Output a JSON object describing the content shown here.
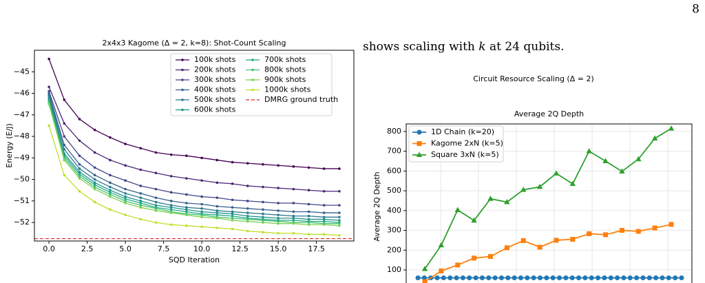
{
  "page_number": "8",
  "text": [
    "shows scaling with ",
    "k",
    " at 24 qubits."
  ],
  "chart_data": [
    {
      "type": "line",
      "title": "2x4x3 Kagome (Δ = 2, k=8): Shot-Count Scaling",
      "xlabel": "SQD Iteration",
      "ylabel": "Energy (E/J)",
      "x": [
        0,
        1,
        2,
        3,
        4,
        5,
        6,
        7,
        8,
        9,
        10,
        11,
        12,
        13,
        14,
        15,
        16,
        17,
        18,
        19
      ],
      "xlim": [
        -0.95,
        19.95
      ],
      "xticks": [
        {
          "value": 0,
          "label": "0.0"
        },
        2.5,
        {
          "value": 5,
          "label": "5.0"
        },
        7.5,
        {
          "value": 10,
          "label": "10.0"
        },
        12.5,
        {
          "value": 15,
          "label": "15.0"
        },
        17.5
      ],
      "ylim": [
        -52.86,
        -44.0
      ],
      "yticks": [
        {
          "value": -52,
          "label": "−52"
        },
        {
          "value": -51,
          "label": "−51"
        },
        {
          "value": -50,
          "label": "−50"
        },
        {
          "value": -49,
          "label": "−49"
        },
        {
          "value": -48,
          "label": "−48"
        },
        {
          "value": -47,
          "label": "−47"
        },
        {
          "value": -46,
          "label": "−46"
        },
        {
          "value": -45,
          "label": "−45"
        }
      ],
      "series": [
        {
          "name": "100k shots",
          "color": "#440154",
          "values": [
            -44.4,
            -46.3,
            -47.2,
            -47.7,
            -48.05,
            -48.35,
            -48.55,
            -48.75,
            -48.85,
            -48.9,
            -49.0,
            -49.1,
            -49.2,
            -49.25,
            -49.3,
            -49.35,
            -49.4,
            -49.45,
            -49.5,
            -49.5
          ]
        },
        {
          "name": "200k shots",
          "color": "#482475",
          "values": [
            -45.7,
            -47.4,
            -48.2,
            -48.75,
            -49.1,
            -49.35,
            -49.55,
            -49.7,
            -49.85,
            -49.95,
            -50.05,
            -50.15,
            -50.2,
            -50.3,
            -50.35,
            -50.4,
            -50.45,
            -50.5,
            -50.55,
            -50.55
          ]
        },
        {
          "name": "300k shots",
          "color": "#414487",
          "values": [
            -45.9,
            -48.0,
            -48.9,
            -49.45,
            -49.8,
            -50.05,
            -50.3,
            -50.45,
            -50.6,
            -50.7,
            -50.8,
            -50.85,
            -50.95,
            -51.0,
            -51.05,
            -51.1,
            -51.1,
            -51.15,
            -51.2,
            -51.2
          ]
        },
        {
          "name": "400k shots",
          "color": "#355f8d",
          "values": [
            -46.0,
            -48.4,
            -49.3,
            -49.8,
            -50.15,
            -50.45,
            -50.65,
            -50.85,
            -51.0,
            -51.1,
            -51.15,
            -51.25,
            -51.3,
            -51.35,
            -51.4,
            -51.45,
            -51.5,
            -51.5,
            -51.55,
            -51.55
          ]
        },
        {
          "name": "500k shots",
          "color": "#2a788e",
          "values": [
            -46.1,
            -48.6,
            -49.5,
            -50.0,
            -50.35,
            -50.65,
            -50.85,
            -51.05,
            -51.2,
            -51.3,
            -51.35,
            -51.45,
            -51.5,
            -51.55,
            -51.6,
            -51.65,
            -51.7,
            -51.7,
            -51.75,
            -51.75
          ]
        },
        {
          "name": "600k shots",
          "color": "#21918c",
          "values": [
            -46.2,
            -48.8,
            -49.65,
            -50.15,
            -50.5,
            -50.8,
            -51.0,
            -51.2,
            -51.3,
            -51.4,
            -51.5,
            -51.55,
            -51.6,
            -51.7,
            -51.75,
            -51.8,
            -51.8,
            -51.85,
            -51.85,
            -51.9
          ]
        },
        {
          "name": "700k shots",
          "color": "#22a884",
          "values": [
            -46.3,
            -48.9,
            -49.75,
            -50.25,
            -50.6,
            -50.9,
            -51.1,
            -51.3,
            -51.4,
            -51.5,
            -51.6,
            -51.65,
            -51.7,
            -51.8,
            -51.85,
            -51.9,
            -51.9,
            -51.95,
            -51.95,
            -52.0
          ]
        },
        {
          "name": "800k shots",
          "color": "#44bf70",
          "values": [
            -46.4,
            -49.0,
            -49.85,
            -50.35,
            -50.7,
            -51.0,
            -51.2,
            -51.35,
            -51.5,
            -51.6,
            -51.65,
            -51.75,
            -51.8,
            -51.85,
            -51.9,
            -51.95,
            -52.0,
            -52.0,
            -52.05,
            -52.05
          ]
        },
        {
          "name": "900k shots",
          "color": "#7ad151",
          "values": [
            -46.5,
            -49.1,
            -49.95,
            -50.45,
            -50.8,
            -51.1,
            -51.3,
            -51.45,
            -51.55,
            -51.65,
            -51.75,
            -51.8,
            -51.9,
            -51.95,
            -52.0,
            -52.05,
            -52.05,
            -52.1,
            -52.1,
            -52.15
          ]
        },
        {
          "name": "1000k shots",
          "color": "#bddf26",
          "values": [
            -47.5,
            -49.8,
            -50.55,
            -51.05,
            -51.4,
            -51.65,
            -51.85,
            -52.0,
            -52.1,
            -52.15,
            -52.2,
            -52.25,
            -52.3,
            -52.4,
            -52.45,
            -52.5,
            -52.5,
            -52.55,
            -52.55,
            -52.6
          ]
        }
      ],
      "reference": {
        "name": "DMRG ground truth",
        "value": -52.75,
        "color": "#d62728"
      },
      "legend": "upper right"
    },
    {
      "type": "line",
      "suptitle": "Circuit Resource Scaling (Δ = 2)",
      "title": "Average 2Q Depth",
      "ylabel": "Average 2Q Depth",
      "ylim": [
        34,
        838
      ],
      "yticks": [
        100,
        200,
        300,
        400,
        500,
        600,
        700,
        800
      ],
      "grid": true,
      "series": [
        {
          "name": "1D Chain (k=20)",
          "color": "#1f77b4",
          "marker": "circle",
          "values": [
            60,
            60,
            60,
            60,
            60,
            60,
            60,
            60,
            60,
            60,
            60,
            60,
            60,
            60,
            60,
            60,
            60,
            60,
            60,
            60,
            60,
            60,
            60,
            60,
            60,
            60,
            60,
            60,
            60,
            60,
            60,
            60,
            60,
            60,
            60,
            60,
            60,
            60,
            60,
            60,
            60,
            60
          ]
        },
        {
          "name": "Kagome 2xN (k=5)",
          "color": "#ff7f0e",
          "marker": "square",
          "values": [
            40,
            95,
            125,
            160,
            168,
            212,
            248,
            215,
            250,
            255,
            283,
            278,
            300,
            295,
            312,
            330
          ]
        },
        {
          "name": "Square 3xN (k=5)",
          "color": "#2ca02c",
          "marker": "triangle",
          "values": [
            105,
            225,
            403,
            350,
            460,
            443,
            505,
            520,
            588,
            535,
            700,
            650,
            598,
            660,
            765,
            815
          ]
        }
      ],
      "legend": "upper left"
    }
  ]
}
